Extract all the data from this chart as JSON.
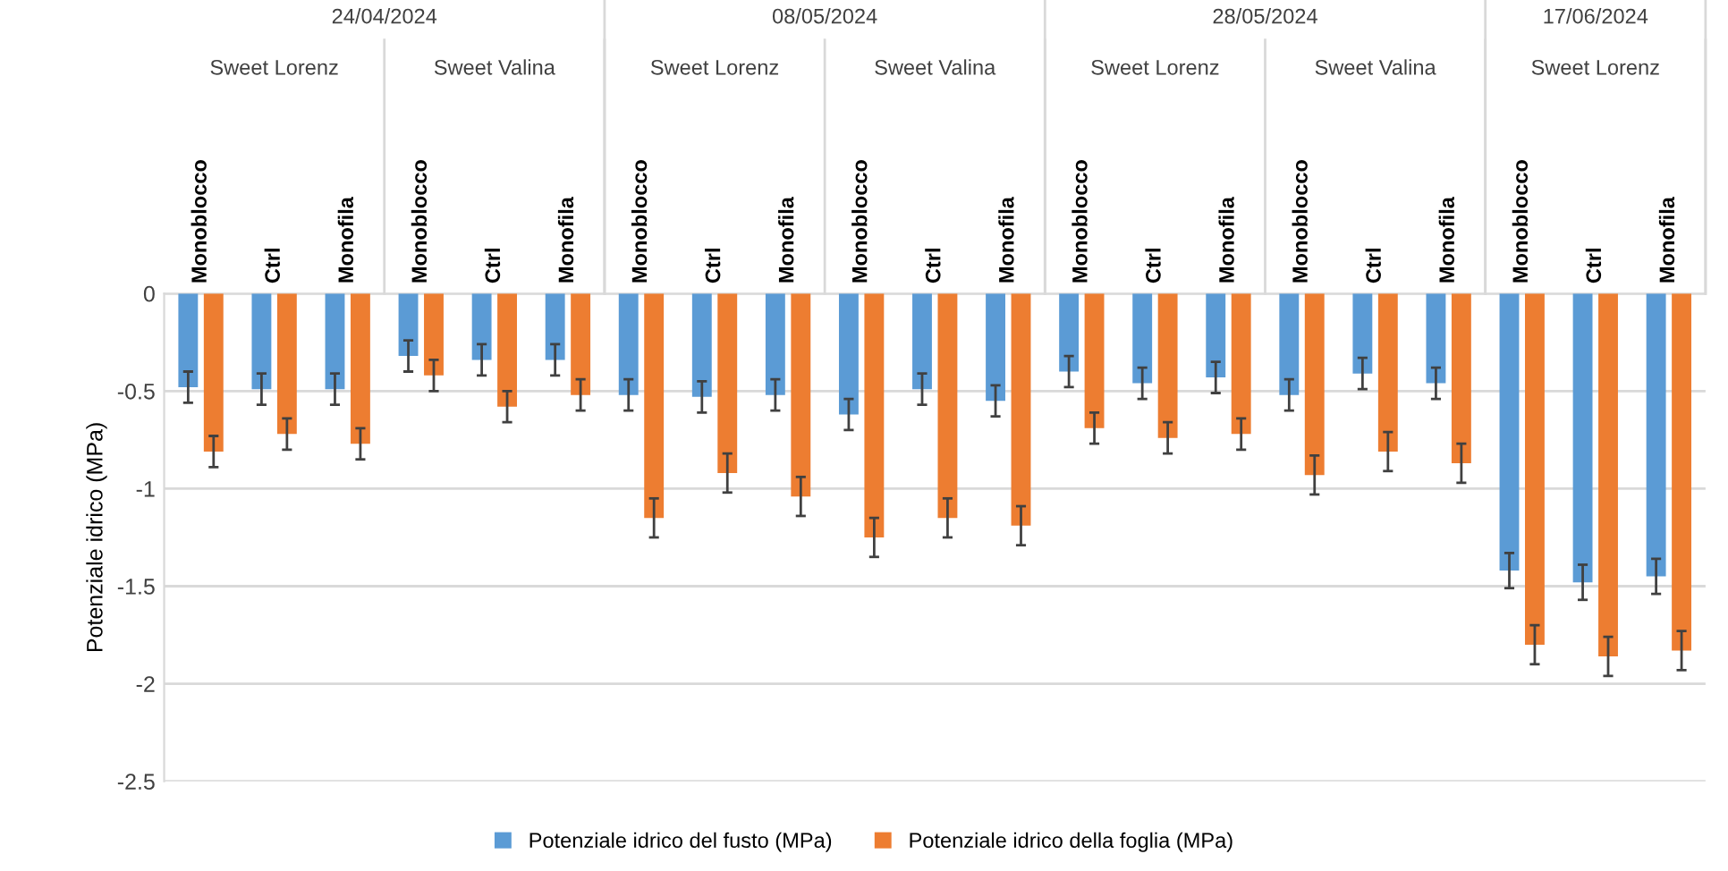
{
  "chart_data": {
    "type": "bar",
    "ylabel": "Potenziale idrico (MPa)",
    "categories": [
      "Monoblocco",
      "Ctrl",
      "Monofila",
      "Monoblocco",
      "Ctrl",
      "Monofila",
      "Monoblocco",
      "Ctrl",
      "Monofila",
      "Monoblocco",
      "Ctrl",
      "Monofila",
      "Monoblocco",
      "Ctrl",
      "Monofila",
      "Monoblocco",
      "Ctrl",
      "Monofila",
      "Monoblocco",
      "Ctrl",
      "Monofila"
    ],
    "series": [
      {
        "name": "Potenziale idrico del fusto (MPa)",
        "color": "#5b9bd5",
        "values": [
          -0.48,
          -0.49,
          -0.49,
          -0.32,
          -0.34,
          -0.34,
          -0.52,
          -0.53,
          -0.52,
          -0.62,
          -0.49,
          -0.55,
          -0.4,
          -0.46,
          -0.43,
          -0.52,
          -0.41,
          -0.46,
          -1.42,
          -1.48,
          -1.45
        ],
        "errors": [
          0.08,
          0.08,
          0.08,
          0.08,
          0.08,
          0.08,
          0.08,
          0.08,
          0.08,
          0.08,
          0.08,
          0.08,
          0.08,
          0.08,
          0.08,
          0.08,
          0.08,
          0.08,
          0.09,
          0.09,
          0.09
        ]
      },
      {
        "name": "Potenziale idrico della foglia (MPa)",
        "color": "#ed7d31",
        "values": [
          -0.81,
          -0.72,
          -0.77,
          -0.42,
          -0.58,
          -0.52,
          -1.15,
          -0.92,
          -1.04,
          -1.25,
          -1.15,
          -1.19,
          -0.69,
          -0.74,
          -0.72,
          -0.93,
          -0.81,
          -0.87,
          -1.8,
          -1.86,
          -1.83
        ],
        "errors": [
          0.08,
          0.08,
          0.08,
          0.08,
          0.08,
          0.08,
          0.1,
          0.1,
          0.1,
          0.1,
          0.1,
          0.1,
          0.08,
          0.08,
          0.08,
          0.1,
          0.1,
          0.1,
          0.1,
          0.1,
          0.1
        ]
      }
    ],
    "annotations": [
      "24/04/2024",
      "Sweet Lorenz",
      "Sweet Valina",
      "08/05/2024",
      "Sweet Lorenz",
      "Sweet Valina",
      "28/05/2024",
      "Sweet Lorenz",
      "Sweet Valina",
      "17/06/2024",
      "Sweet Lorenz"
    ],
    "ylim": [
      -2.5,
      0
    ],
    "yticks": [
      -2.5,
      -2,
      -1.5,
      -1,
      -0.5,
      0
    ],
    "grid": "y",
    "legend": "bottom"
  }
}
